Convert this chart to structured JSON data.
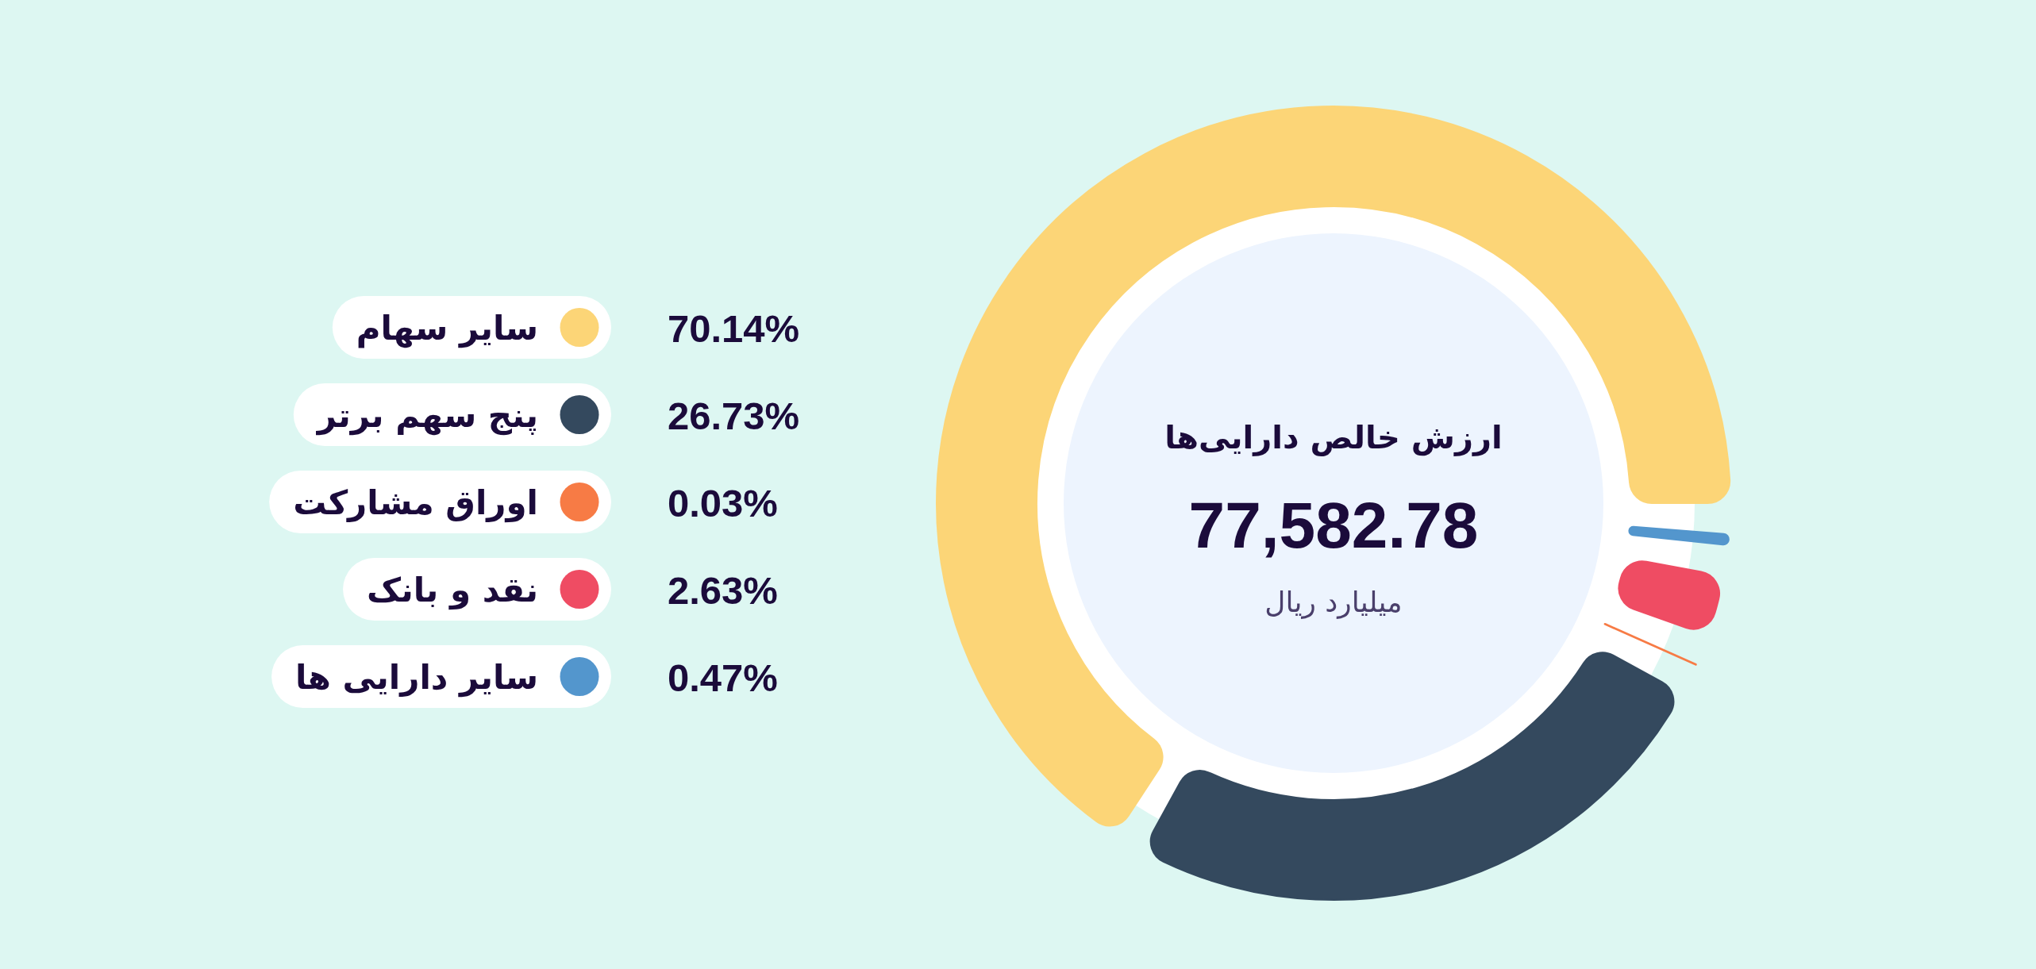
{
  "chart_data": {
    "type": "donut",
    "title": "ارزش خالص دارایی‌ها",
    "annotations": [
      "77,582.78",
      "میلیارد ریال"
    ],
    "categories": [
      "سایر سهام",
      "پنج سهم برتر",
      "اوراق مشارکت",
      "نقد و بانک",
      "سایر دارایی ها"
    ],
    "values": [
      70.14,
      26.73,
      0.03,
      2.63,
      0.47
    ],
    "colors": [
      "#fcd577",
      "#34495e",
      "#f77b45",
      "#ef4c63",
      "#5396cd"
    ],
    "value_labels": [
      "70.14%",
      "26.73%",
      "0.03%",
      "2.63%",
      "0.47%"
    ],
    "legend": "left"
  }
}
